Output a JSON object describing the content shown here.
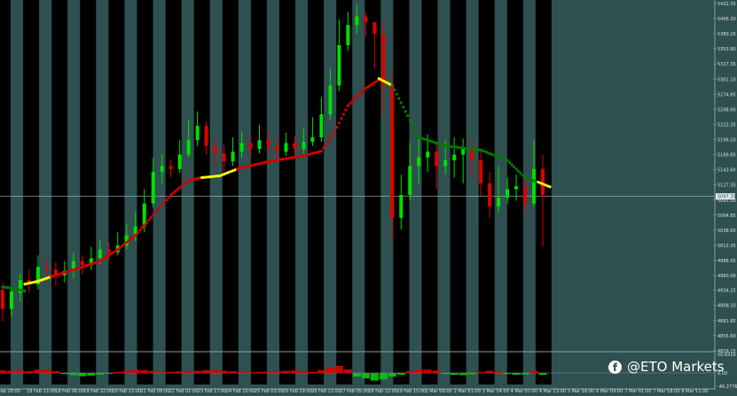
{
  "chart_data": [
    {
      "type": "candlestick",
      "title": "",
      "ylim": [
        4829.15,
        5432.35
      ],
      "y_ticks": [
        "5432.35",
        "5406.30",
        "5380.25",
        "5353.80",
        "5327.35",
        "5301.10",
        "5274.85",
        "5248.60",
        "5222.35",
        "5196.10",
        "5169.85",
        "5143.60",
        "5117.35",
        "5091.10",
        "5064.85",
        "5038.60",
        "5012.35",
        "4986.05",
        "4960.00",
        "4934.25",
        "4908.10",
        "4881.85",
        "4855.60",
        "4829.15"
      ],
      "x_ticks": [
        "Feb 20:00",
        "18 Feb 13:00",
        "19 Feb 06:00",
        "19 Feb 22:00",
        "20 Feb 15:00",
        "21 Feb 08:00",
        "22 Feb 01:00",
        "23 Feb 17:00",
        "24 Feb 10:00",
        "25 Feb 03:00",
        "25 Feb 19:00",
        "26 Feb 12:00",
        "27 Feb 05:00",
        "28 Feb 22:00",
        "29 Feb 15:00",
        "1 Mar 08:00",
        "2 Mar 01:00",
        "3 Mar 14:00",
        "4 Mar 07:00",
        "4 Mar 23:00",
        "5 Mar 16:00",
        "6 Mar 09:00",
        "7 Mar 01:00",
        "7 Mar 18:00",
        "8 Mar 11:00",
        "11 Mar 03:00"
      ],
      "current_price_label": "5097.35",
      "candles": [
        [
          4935,
          4902,
          4948,
          4880
        ],
        [
          4902,
          4932,
          4941,
          4888
        ],
        [
          4930,
          4952,
          4962,
          4915
        ],
        [
          4952,
          4945,
          4971,
          4930
        ],
        [
          4945,
          4975,
          4995,
          4936
        ],
        [
          4975,
          4970,
          4990,
          4950
        ],
        [
          4970,
          4960,
          4984,
          4942
        ],
        [
          4960,
          4968,
          4985,
          4948
        ],
        [
          4968,
          4985,
          5000,
          4955
        ],
        [
          4985,
          4978,
          4995,
          4962
        ],
        [
          4978,
          4990,
          5010,
          4970
        ],
        [
          4990,
          5005,
          5022,
          4980
        ],
        [
          5005,
          5000,
          5018,
          4985
        ],
        [
          5000,
          5012,
          5035,
          4995
        ],
        [
          5012,
          5030,
          5050,
          5005
        ],
        [
          5030,
          5045,
          5070,
          5020
        ],
        [
          5045,
          5085,
          5110,
          5035
        ],
        [
          5085,
          5140,
          5165,
          5078
        ],
        [
          5140,
          5150,
          5170,
          5120
        ],
        [
          5150,
          5145,
          5162,
          5130
        ],
        [
          5145,
          5170,
          5195,
          5138
        ],
        [
          5170,
          5195,
          5230,
          5165
        ],
        [
          5195,
          5220,
          5245,
          5185
        ],
        [
          5220,
          5185,
          5228,
          5170
        ],
        [
          5185,
          5172,
          5198,
          5150
        ],
        [
          5172,
          5158,
          5188,
          5140
        ],
        [
          5158,
          5175,
          5200,
          5150
        ],
        [
          5175,
          5190,
          5210,
          5165
        ],
        [
          5190,
          5180,
          5205,
          5165
        ],
        [
          5180,
          5195,
          5222,
          5172
        ],
        [
          5195,
          5185,
          5210,
          5170
        ],
        [
          5185,
          5175,
          5200,
          5160
        ],
        [
          5175,
          5190,
          5208,
          5168
        ],
        [
          5190,
          5180,
          5202,
          5168
        ],
        [
          5180,
          5192,
          5215,
          5172
        ],
        [
          5192,
          5200,
          5235,
          5185
        ],
        [
          5200,
          5240,
          5270,
          5192
        ],
        [
          5240,
          5290,
          5320,
          5230
        ],
        [
          5290,
          5360,
          5405,
          5280
        ],
        [
          5360,
          5395,
          5418,
          5350
        ],
        [
          5395,
          5410,
          5430,
          5380
        ],
        [
          5410,
          5400,
          5418,
          5375
        ],
        [
          5400,
          5380,
          5398,
          5320
        ],
        [
          5380,
          5290,
          5400,
          5240
        ],
        [
          5290,
          5060,
          5310,
          5020
        ],
        [
          5060,
          5100,
          5135,
          5040
        ],
        [
          5100,
          5150,
          5190,
          5090
        ],
        [
          5150,
          5165,
          5200,
          5120
        ],
        [
          5165,
          5175,
          5205,
          5140
        ],
        [
          5175,
          5150,
          5190,
          5110
        ],
        [
          5150,
          5160,
          5195,
          5135
        ],
        [
          5160,
          5170,
          5200,
          5130
        ],
        [
          5170,
          5180,
          5198,
          5120
        ],
        [
          5180,
          5160,
          5196,
          5130
        ],
        [
          5160,
          5120,
          5180,
          5098
        ],
        [
          5120,
          5080,
          5140,
          5060
        ],
        [
          5080,
          5095,
          5150,
          5070
        ],
        [
          5095,
          5110,
          5130,
          5085
        ],
        [
          5110,
          5115,
          5135,
          5090
        ],
        [
          5115,
          5085,
          5130,
          5070
        ],
        [
          5085,
          5145,
          5195,
          5080
        ],
        [
          5145,
          5100,
          5170,
          5010
        ]
      ],
      "ma_series": [
        {
          "color": "#007a00",
          "points": [
            [
              0.0,
              4940
            ],
            [
              1.2,
              4938
            ],
            [
              2.5,
              4933
            ]
          ]
        },
        {
          "color": "#ffff00",
          "points": [
            [
              2.5,
              4945
            ],
            [
              4.0,
              4950
            ],
            [
              5.5,
              4958
            ]
          ]
        },
        {
          "color": "#d40000",
          "points": [
            [
              5.5,
              4958
            ],
            [
              8,
              4970
            ],
            [
              11,
              4985
            ],
            [
              13,
              5005
            ],
            [
              15,
              5030
            ],
            [
              17,
              5065
            ],
            [
              19,
              5100
            ],
            [
              21,
              5125
            ],
            [
              22.5,
              5130
            ]
          ]
        },
        {
          "color": "#ffff00",
          "points": [
            [
              22.5,
              5130
            ],
            [
              24.5,
              5133
            ],
            [
              26.5,
              5145
            ]
          ]
        },
        {
          "color": "#d40000",
          "points": [
            [
              26.5,
              5145
            ],
            [
              30,
              5158
            ],
            [
              34,
              5168
            ],
            [
              36,
              5176
            ],
            [
              37.5,
              5210
            ],
            [
              39,
              5255
            ],
            [
              41,
              5285
            ],
            [
              42.5,
              5300
            ]
          ]
        },
        {
          "color": "#ffff00",
          "points": [
            [
              42.5,
              5302
            ],
            [
              44,
              5290
            ]
          ]
        },
        {
          "color": "#007a00",
          "points": [
            [
              44,
              5290
            ],
            [
              45.5,
              5245
            ],
            [
              47,
              5200
            ],
            [
              50,
              5185
            ],
            [
              54,
              5178
            ],
            [
              57,
              5160
            ],
            [
              59,
              5130
            ],
            [
              60.5,
              5122
            ]
          ]
        },
        {
          "color": "#ffff00",
          "points": [
            [
              60.5,
              5122
            ],
            [
              61.8,
              5114
            ]
          ]
        }
      ],
      "oscillator": {
        "ylim": [
          -46.2776,
          50.6316
        ],
        "y_ticks": [
          "50.6316",
          "0.00",
          "-46.2776"
        ],
        "bars": [
          14,
          12,
          15,
          10,
          18,
          20,
          10,
          -6,
          -12,
          -18,
          -14,
          -10,
          -5,
          6,
          12,
          18,
          16,
          10,
          4,
          6,
          8,
          10,
          12,
          16,
          18,
          12,
          10,
          6,
          4,
          6,
          8,
          10,
          12,
          14,
          10,
          6,
          16,
          30,
          40,
          20,
          -20,
          -30,
          -42,
          -35,
          -20,
          -10,
          10,
          20,
          18,
          14,
          -6,
          -10,
          -12,
          -8,
          6,
          12,
          8,
          -6,
          -10,
          -8,
          12,
          -10
        ]
      }
    }
  ],
  "watermark": {
    "icon": "facebook-icon",
    "text": "@ETO Markets"
  },
  "colors": {
    "background": "#2f5050",
    "session_band": "#000000",
    "bull": "#00e000",
    "bear": "#e00000"
  }
}
